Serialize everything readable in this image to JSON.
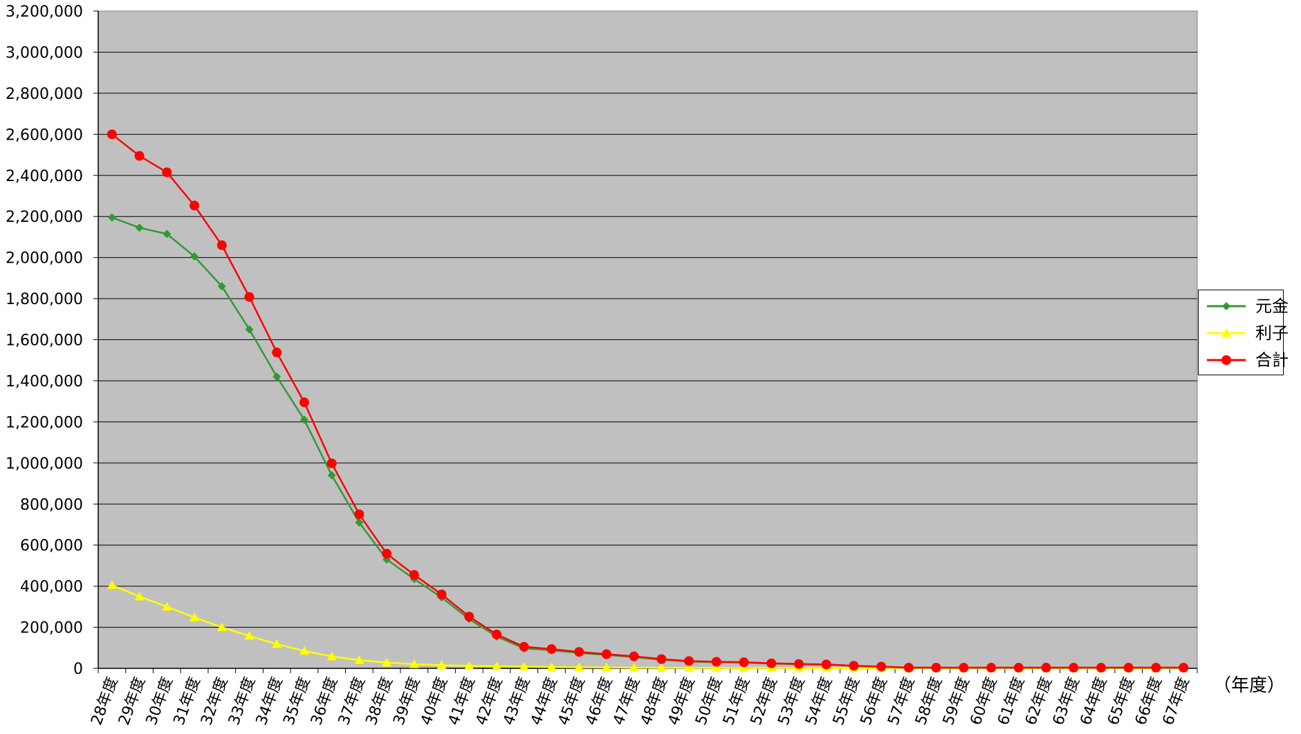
{
  "chart_data": {
    "type": "line",
    "title": "",
    "xlabel": "（年度）",
    "ylabel": "",
    "ylim": [
      0,
      3200000
    ],
    "yticks": [
      0,
      200000,
      400000,
      600000,
      800000,
      1000000,
      1200000,
      1400000,
      1600000,
      1800000,
      2000000,
      2200000,
      2400000,
      2600000,
      2800000,
      3000000,
      3200000
    ],
    "ytick_labels": [
      "0",
      "200,000",
      "400,000",
      "600,000",
      "800,000",
      "1,000,000",
      "1,200,000",
      "1,400,000",
      "1,600,000",
      "1,800,000",
      "2,000,000",
      "2,200,000",
      "2,400,000",
      "2,600,000",
      "2,800,000",
      "3,000,000",
      "3,200,000"
    ],
    "categories": [
      "28年度",
      "29年度",
      "30年度",
      "31年度",
      "32年度",
      "33年度",
      "34年度",
      "35年度",
      "36年度",
      "37年度",
      "38年度",
      "39年度",
      "40年度",
      "41年度",
      "42年度",
      "43年度",
      "44年度",
      "45年度",
      "46年度",
      "47年度",
      "48年度",
      "49年度",
      "50年度",
      "51年度",
      "52年度",
      "53年度",
      "54年度",
      "55年度",
      "56年度",
      "57年度",
      "58年度",
      "59年度",
      "60年度",
      "61年度",
      "62年度",
      "63年度",
      "64年度",
      "65年度",
      "66年度",
      "67年度"
    ],
    "grid": true,
    "legend_position": "right",
    "plot_background": "#c0c0c0",
    "series": [
      {
        "name": "元金",
        "color": "#339933",
        "marker": "diamond",
        "values": [
          2195000,
          2145000,
          2115000,
          2005000,
          1860000,
          1650000,
          1420000,
          1210000,
          940000,
          710000,
          530000,
          435000,
          345000,
          240000,
          155000,
          97000,
          88000,
          75000,
          65000,
          55000,
          42000,
          33000,
          30000,
          28000,
          23000,
          20000,
          18000,
          12000,
          8000,
          3000,
          3000,
          3000,
          3000,
          3000,
          3000,
          3000,
          3000,
          3000,
          3000,
          3000
        ]
      },
      {
        "name": "利子",
        "color": "#ffff00",
        "marker": "triangle",
        "values": [
          405000,
          350000,
          300000,
          248000,
          200000,
          158000,
          118000,
          85000,
          58000,
          40000,
          28000,
          20000,
          15000,
          12000,
          10000,
          8000,
          6000,
          5000,
          4000,
          3500,
          3000,
          2500,
          2000,
          1800,
          1500,
          1200,
          1000,
          800,
          600,
          400,
          300,
          300,
          300,
          300,
          300,
          300,
          300,
          300,
          300,
          300
        ]
      },
      {
        "name": "合計",
        "color": "#ff0000",
        "marker": "circle",
        "values": [
          2600000,
          2495000,
          2415000,
          2253000,
          2060000,
          1808000,
          1538000,
          1295000,
          998000,
          750000,
          558000,
          455000,
          360000,
          252000,
          165000,
          105000,
          94000,
          80000,
          69000,
          58500,
          45000,
          35500,
          32000,
          29800,
          24500,
          21200,
          19000,
          12800,
          8600,
          3400,
          3300,
          3300,
          3300,
          3300,
          3300,
          3300,
          3300,
          3300,
          3300,
          3300
        ]
      }
    ]
  }
}
